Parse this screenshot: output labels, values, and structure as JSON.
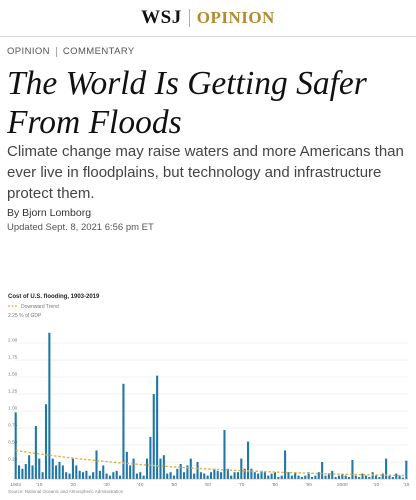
{
  "masthead": {
    "brand": "WSJ",
    "section": "OPINION"
  },
  "kicker": {
    "section": "OPINION",
    "category": "COMMENTARY"
  },
  "article": {
    "headline": "The World Is Getting Safer From Floods",
    "dek": "Climate change may raise waters and more Americans than ever live in floodplains, but technology and infrastructure protect them.",
    "byline": "By Bjorn Lomborg",
    "updated": "Updated Sept. 8, 2021 6:56 pm ET"
  },
  "colors": {
    "accent": "#b38a2e",
    "bar": "#1f77a7",
    "trend": "#d8b24a"
  },
  "chart_data": {
    "type": "bar",
    "title": "Cost of U.S. flooding, 1903-2019",
    "legend": [
      "Downward Trend"
    ],
    "ylabel": "2.25 % of GDP",
    "source": "Source: National Oceanic and Atmospheric Administration",
    "ylim": [
      0,
      2.25
    ],
    "yticks": [
      "2.00",
      "1.75",
      "1.50",
      "1.25",
      "1.00",
      "0.75",
      "0.50",
      "0.25"
    ],
    "ytick_values": [
      2.0,
      1.75,
      1.5,
      1.25,
      1.0,
      0.75,
      0.5,
      0.25
    ],
    "xticks": [
      "1903",
      "'10",
      "'20",
      "'30",
      "'40",
      "'50",
      "'60",
      "'70",
      "'80",
      "'90",
      "2000",
      "'10",
      "'19"
    ],
    "xtick_years": [
      1903,
      1910,
      1920,
      1930,
      1940,
      1950,
      1960,
      1970,
      1980,
      1990,
      2000,
      2010,
      2019
    ],
    "series_name": "Cost of U.S. flooding",
    "years": [
      1903,
      1904,
      1905,
      1906,
      1907,
      1908,
      1909,
      1910,
      1911,
      1912,
      1913,
      1914,
      1915,
      1916,
      1917,
      1918,
      1919,
      1920,
      1921,
      1922,
      1923,
      1924,
      1925,
      1926,
      1927,
      1928,
      1929,
      1930,
      1931,
      1932,
      1933,
      1934,
      1935,
      1936,
      1937,
      1938,
      1939,
      1940,
      1941,
      1942,
      1943,
      1944,
      1945,
      1946,
      1947,
      1948,
      1949,
      1950,
      1951,
      1952,
      1953,
      1954,
      1955,
      1956,
      1957,
      1958,
      1959,
      1960,
      1961,
      1962,
      1963,
      1964,
      1965,
      1966,
      1967,
      1968,
      1969,
      1970,
      1971,
      1972,
      1973,
      1974,
      1975,
      1976,
      1977,
      1978,
      1979,
      1980,
      1981,
      1982,
      1983,
      1984,
      1985,
      1986,
      1987,
      1988,
      1989,
      1990,
      1991,
      1992,
      1993,
      1994,
      1995,
      1996,
      1997,
      1998,
      1999,
      2000,
      2001,
      2002,
      2003,
      2004,
      2005,
      2006,
      2007,
      2008,
      2009,
      2010,
      2011,
      2012,
      2013,
      2014,
      2015,
      2016,
      2017,
      2018,
      2019
    ],
    "values": [
      0.98,
      0.2,
      0.15,
      0.22,
      0.35,
      0.2,
      0.78,
      0.3,
      0.1,
      1.1,
      2.15,
      0.3,
      0.2,
      0.25,
      0.2,
      0.1,
      0.08,
      0.3,
      0.2,
      0.12,
      0.1,
      0.12,
      0.05,
      0.1,
      0.42,
      0.12,
      0.2,
      0.08,
      0.05,
      0.1,
      0.12,
      0.05,
      1.4,
      0.4,
      0.2,
      0.3,
      0.08,
      0.1,
      0.05,
      0.3,
      0.62,
      1.25,
      1.52,
      0.3,
      0.35,
      0.08,
      0.1,
      0.05,
      0.15,
      0.22,
      0.1,
      0.2,
      0.3,
      0.08,
      0.25,
      0.1,
      0.08,
      0.05,
      0.1,
      0.15,
      0.12,
      0.1,
      0.72,
      0.15,
      0.05,
      0.1,
      0.1,
      0.3,
      0.15,
      0.55,
      0.15,
      0.1,
      0.08,
      0.12,
      0.1,
      0.05,
      0.08,
      0.1,
      0.03,
      0.05,
      0.42,
      0.1,
      0.05,
      0.1,
      0.05,
      0.03,
      0.05,
      0.1,
      0.03,
      0.05,
      0.1,
      0.25,
      0.05,
      0.08,
      0.12,
      0.03,
      0.05,
      0.08,
      0.05,
      0.03,
      0.28,
      0.05,
      0.03,
      0.08,
      0.05,
      0.03,
      0.1,
      0.05,
      0.03,
      0.08,
      0.3,
      0.05,
      0.03,
      0.08,
      0.05,
      0.02,
      0.27
    ],
    "trend": {
      "start": 0.42,
      "end": 0.05
    }
  }
}
